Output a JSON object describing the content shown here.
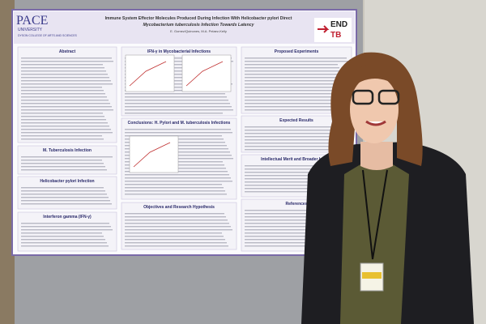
{
  "poster": {
    "logo": {
      "name": "PACE",
      "line2": "UNIVERSITY",
      "college": "DYSON COLLEGE OF ARTS AND SCIENCES"
    },
    "title_line1": "Immune System Effector Molecules Produced During Infection With Helicobacter pylori Direct",
    "title_line2": "Mycobacterium tuberculosis Infection Towards Latency",
    "authors": "E. Gomez/Quinones, M.A. Pelaez-Kelly",
    "badge": {
      "top": "END",
      "bottom": "TB"
    },
    "sections": [
      "Abstract",
      "IFN-γ in Mycobacterial Infections",
      "Proposed Experiments",
      "Expected Results",
      "Conclusions: H. Pylori and M. tuberculosis Infections",
      "M. Tuberculosis Infection",
      "Helicobacter pylori Infection",
      "Interferon gamma (IFN-γ)",
      "Objectives and Research Hypothesis",
      "Intellectual Merit and Broader Impact",
      "References"
    ]
  }
}
